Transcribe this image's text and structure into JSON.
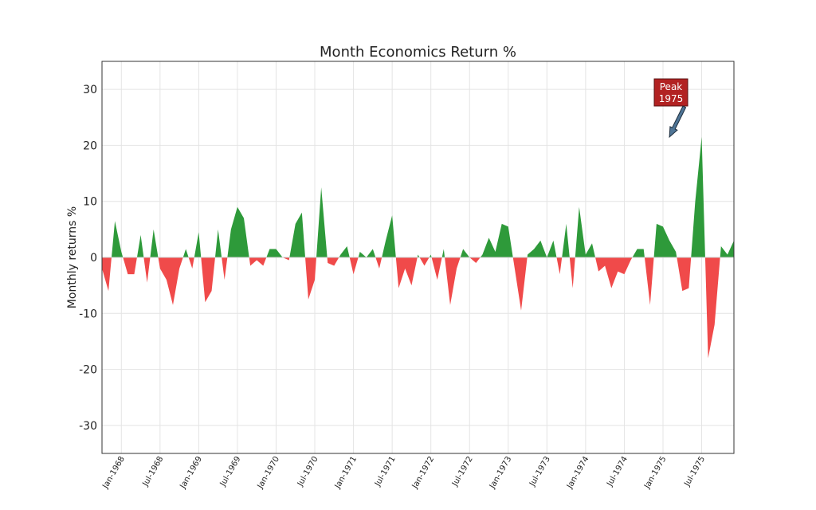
{
  "chart_data": {
    "type": "area",
    "title": "Month Economics Return %",
    "xlabel": "",
    "ylabel": "Monthly returns %",
    "ylim": [
      -35,
      35
    ],
    "yticks": [
      -30,
      -20,
      -10,
      0,
      10,
      20,
      30
    ],
    "grid": true,
    "positive_color": "#2e9a3a",
    "negative_color": "#f04a4a",
    "x_start": "1967-10",
    "x_end": "1975-12",
    "x_tick_labels": [
      "Jan-1968",
      "Jul-1968",
      "Jan-1969",
      "Jul-1969",
      "Jan-1970",
      "Jul-1970",
      "Jan-1971",
      "Jul-1971",
      "Jan-1972",
      "Jul-1972",
      "Jan-1973",
      "Jul-1973",
      "Jan-1974",
      "Jul-1974",
      "Jan-1975",
      "Jul-1975"
    ],
    "series": [
      {
        "x": [
          "1967-10",
          "1967-11",
          "1967-12",
          "1968-01",
          "1968-02",
          "1968-03",
          "1968-04",
          "1968-05",
          "1968-06",
          "1968-07",
          "1968-08",
          "1968-09",
          "1968-10",
          "1968-11",
          "1968-12",
          "1969-01",
          "1969-02",
          "1969-03",
          "1969-04",
          "1969-05",
          "1969-06",
          "1969-07",
          "1969-08",
          "1969-09",
          "1969-10",
          "1969-11",
          "1969-12",
          "1970-01",
          "1970-02",
          "1970-03",
          "1970-04",
          "1970-05",
          "1970-06",
          "1970-07",
          "1970-08",
          "1970-09",
          "1970-10",
          "1970-11",
          "1970-12",
          "1971-01",
          "1971-02",
          "1971-03",
          "1971-04",
          "1971-05",
          "1971-06",
          "1971-07",
          "1971-08",
          "1971-09",
          "1971-10",
          "1971-11",
          "1971-12",
          "1972-01",
          "1972-02",
          "1972-03",
          "1972-04",
          "1972-05",
          "1972-06",
          "1972-07",
          "1972-08",
          "1972-09",
          "1972-10",
          "1972-11",
          "1972-12",
          "1973-01",
          "1973-02",
          "1973-03",
          "1973-04",
          "1973-05",
          "1973-06",
          "1973-07",
          "1973-08",
          "1973-09",
          "1973-10",
          "1973-11",
          "1973-12",
          "1974-01",
          "1974-02",
          "1974-03",
          "1974-04",
          "1974-05",
          "1974-06",
          "1974-07",
          "1974-08",
          "1974-09",
          "1974-10",
          "1974-11",
          "1974-12",
          "1975-01",
          "1975-02",
          "1975-03",
          "1975-04",
          "1975-05",
          "1975-06",
          "1975-07",
          "1975-08",
          "1975-09",
          "1975-10",
          "1975-11",
          "1975-12"
        ],
        "y": [
          -2,
          -6,
          6.5,
          1,
          -3,
          -3,
          4,
          -4.5,
          5,
          -2,
          -4,
          -8.5,
          -2,
          1.5,
          -2,
          4.5,
          -8,
          -6,
          5,
          -4,
          5,
          9,
          7,
          -1.5,
          -0.5,
          -1.5,
          1.5,
          1.5,
          0,
          -0.5,
          6,
          8,
          -7.5,
          -4,
          12.5,
          -1,
          -1.5,
          0.5,
          2,
          -3,
          1,
          0,
          1.5,
          -2,
          3,
          7.5,
          -5.5,
          -2,
          -5,
          0.5,
          -1.5,
          0.5,
          -4,
          1.5,
          -8.5,
          -2,
          1.5,
          0,
          -1,
          0.5,
          3.5,
          1,
          6,
          5.5,
          -2,
          -9.5,
          0.5,
          1.5,
          3,
          0,
          3,
          -3,
          6,
          -5.5,
          9,
          0.5,
          2.5,
          -2.5,
          -1.5,
          -5.5,
          -2.5,
          -3,
          -0.5,
          1.5,
          1.5,
          -8.5,
          6,
          5.5,
          3,
          1,
          -6,
          -5.5,
          10,
          21.5,
          -18,
          -12,
          2,
          0.5,
          3
        ]
      }
    ],
    "annotation": {
      "text_line1": "Peak",
      "text_line2": "1975",
      "x": "1975-02",
      "y": 21.5,
      "box_color": "#b22222",
      "arrow_color": "#4f7596"
    }
  }
}
